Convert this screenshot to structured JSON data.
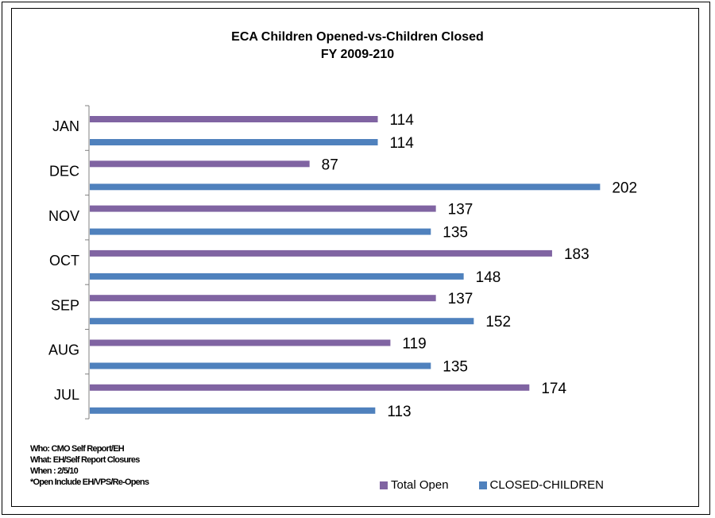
{
  "chart_data": {
    "type": "bar",
    "orientation": "horizontal",
    "title": "ECA Children Opened-vs-Children Closed",
    "subtitle": "FY 2009-210",
    "categories": [
      "JAN",
      "DEC",
      "NOV",
      "OCT",
      "SEP",
      "AUG",
      "JUL"
    ],
    "series": [
      {
        "name": "Total Open",
        "color": "#8064a2",
        "values": [
          114,
          87,
          137,
          183,
          137,
          119,
          174
        ]
      },
      {
        "name": "CLOSED-CHILDREN",
        "color": "#4f81bd",
        "values": [
          114,
          202,
          135,
          148,
          152,
          135,
          113
        ]
      }
    ],
    "xlim": [
      0,
      220
    ],
    "grid": false,
    "legend_position": "bottom-right"
  },
  "notes": [
    "Who: CMO Self Report/EH",
    "What: EH/Self Report Closures",
    "When : 2/5/10",
    "*Open Include EH/VPS/Re-Opens"
  ]
}
